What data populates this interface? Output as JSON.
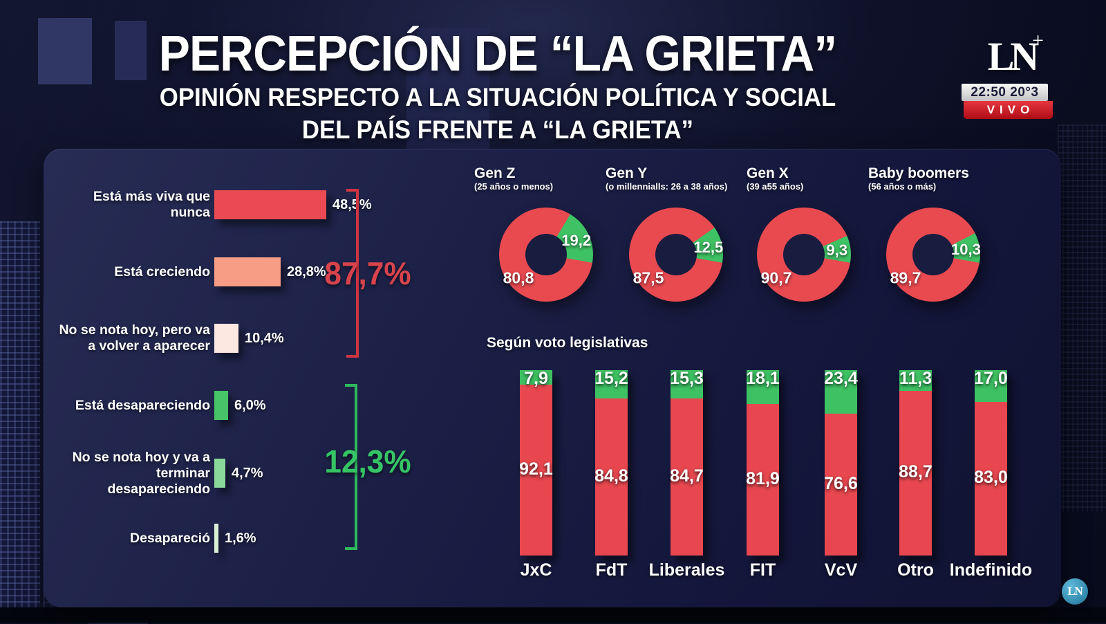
{
  "header": {
    "title": "PERCEPCIÓN DE “LA GRIETA”",
    "subtitle_line1": "OPINIÓN RESPECTO A LA SITUACIÓN POLÍTICA Y SOCIAL",
    "subtitle_line2": "DEL PAÍS FRENTE A “LA GRIETA”"
  },
  "broadcast": {
    "channel_letters": "LN",
    "channel_plus": "+",
    "time": "22:50",
    "temperature": "20°3",
    "time_display": "22:50 20°3",
    "live_label": "VIVO",
    "live_color": "#c8101b",
    "watermark": "LN"
  },
  "chart_data": [
    {
      "type": "bar",
      "orientation": "horizontal",
      "unit": "%",
      "items": [
        {
          "label": "Está más viva que nunca",
          "value": 48.5,
          "display": "48,5%",
          "color": "#ec4a52"
        },
        {
          "label": "Está creciendo",
          "value": 28.8,
          "display": "28,8%",
          "color": "#f79d85"
        },
        {
          "label": "No se nota hoy, pero va a volver a aparecer",
          "value": 10.4,
          "display": "10,4%",
          "color": "#fce8e1"
        },
        {
          "label": "Está desapareciendo",
          "value": 6.0,
          "display": "6,0%",
          "color": "#47c467"
        },
        {
          "label": "No se nota hoy y va a terminar desapareciendo",
          "value": 4.7,
          "display": "4,7%",
          "color": "#8bd89b"
        },
        {
          "label": "Desapareció",
          "value": 1.6,
          "display": "1,6%",
          "color": "#d9f0d4"
        }
      ],
      "brackets": [
        {
          "label": "87,7%",
          "total": 87.7,
          "color": "#d8434c",
          "line_color": "#cf3540",
          "covers": [
            0,
            1,
            2
          ]
        },
        {
          "label": "12,3%",
          "total": 12.3,
          "color": "#35c565",
          "line_color": "#2eba5c",
          "covers": [
            3,
            4,
            5
          ]
        }
      ]
    },
    {
      "type": "pie",
      "style": "donut",
      "colors": {
        "red": "#e84a50",
        "green": "#3ec263"
      },
      "donuts": [
        {
          "name": "Gen Z",
          "subtitle": "(25 años o menos)",
          "red": 80.8,
          "green": 19.2,
          "red_display": "80,8",
          "green_display": "19,2"
        },
        {
          "name": "Gen Y",
          "subtitle": "(o millennialls: 26 a 38 años)",
          "red": 87.5,
          "green": 12.5,
          "red_display": "87,5",
          "green_display": "12,5"
        },
        {
          "name": "Gen X",
          "subtitle": "(39 a55 años)",
          "red": 90.7,
          "green": 9.3,
          "red_display": "90,7",
          "green_display": "9,3"
        },
        {
          "name": "Baby boomers",
          "subtitle": "(56 años o más)",
          "red": 89.7,
          "green": 10.3,
          "red_display": "89,7",
          "green_display": "10,3"
        }
      ]
    },
    {
      "type": "bar",
      "subtype": "stacked-100",
      "title": "Según voto legislativas",
      "categories": [
        "JxC",
        "FdT",
        "Liberales",
        "FIT",
        "VcV",
        "Otro",
        "Indefinido"
      ],
      "series": [
        {
          "name": "green",
          "color": "#3ec163",
          "values": [
            7.9,
            15.2,
            15.3,
            18.1,
            23.4,
            11.3,
            17.0
          ],
          "displays": [
            "7,9",
            "15,2",
            "15,3",
            "18,1",
            "23,4",
            "11,3",
            "17,0"
          ]
        },
        {
          "name": "red",
          "color": "#e8474f",
          "values": [
            92.1,
            84.8,
            84.7,
            81.9,
            76.6,
            88.7,
            83.0
          ],
          "displays": [
            "92,1",
            "84,8",
            "84,7",
            "81,9",
            "76,6",
            "88,7",
            "83,0"
          ]
        }
      ]
    }
  ]
}
